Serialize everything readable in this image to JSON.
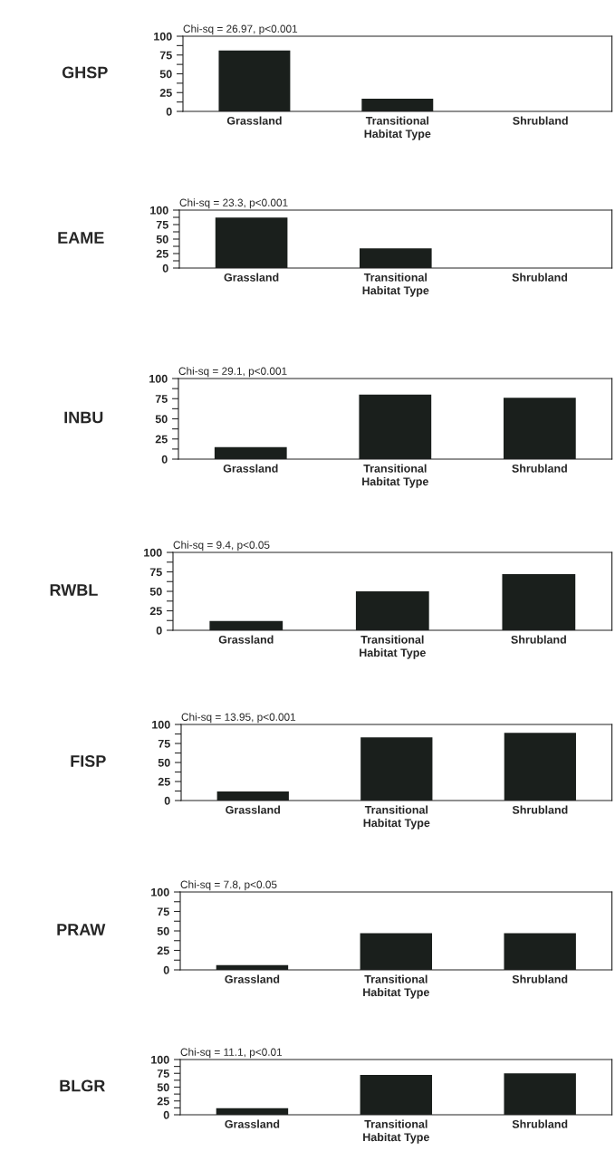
{
  "chart_data": [
    {
      "type": "bar",
      "title": "Chi-sq = 26.97, p<0.001",
      "ylabel": "GHSP",
      "xlabel": "Habitat Type",
      "categories": [
        "Grassland",
        "Transitional",
        "Shrubland"
      ],
      "values": [
        81,
        17,
        0
      ],
      "color": "#1a1f1c",
      "ylim": [
        0,
        100
      ],
      "yticks": [
        0,
        {
          "value": 12.5,
          "label": null
        },
        25,
        {
          "value": 37.5,
          "label": null
        },
        50,
        {
          "value": 62.5,
          "label": null
        },
        75,
        {
          "value": 87.5,
          "label": null
        },
        100
      ],
      "grid": false
    },
    {
      "type": "bar",
      "title": "Chi-sq = 23.3, p<0.001",
      "ylabel": "EAME",
      "xlabel": "Habitat Type",
      "categories": [
        "Grassland",
        "Transitional",
        "Shrubland"
      ],
      "values": [
        87,
        34,
        0
      ],
      "color": "#1a1f1c",
      "ylim": [
        0,
        100
      ],
      "yticks": [
        0,
        {
          "value": 12.5,
          "label": null
        },
        25,
        {
          "value": 37.5,
          "label": null
        },
        50,
        {
          "value": 62.5,
          "label": null
        },
        75,
        {
          "value": 87.5,
          "label": null
        },
        100
      ],
      "grid": false
    },
    {
      "type": "bar",
      "title": "Chi-sq = 29.1, p<0.001",
      "ylabel": "INBU",
      "xlabel": "Habitat Type",
      "categories": [
        "Grassland",
        "Transitional",
        "Shrubland"
      ],
      "values": [
        15,
        80,
        76
      ],
      "color": "#1a1f1c",
      "ylim": [
        0,
        100
      ],
      "yticks": [
        0,
        {
          "value": 12.5,
          "label": null
        },
        25,
        {
          "value": 37.5,
          "label": null
        },
        50,
        {
          "value": 62.5,
          "label": null
        },
        75,
        {
          "value": 87.5,
          "label": null
        },
        100
      ],
      "grid": false
    },
    {
      "type": "bar",
      "title": "Chi-sq = 9.4, p<0.05",
      "ylabel": "RWBL",
      "xlabel": "Habitat Type",
      "categories": [
        "Grassland",
        "Transitional",
        "Shrubland"
      ],
      "values": [
        12,
        50,
        72
      ],
      "color": "#1a1f1c",
      "ylim": [
        0,
        100
      ],
      "yticks": [
        0,
        {
          "value": 12.5,
          "label": null
        },
        25,
        {
          "value": 37.5,
          "label": null
        },
        50,
        {
          "value": 62.5,
          "label": null
        },
        75,
        {
          "value": 87.5,
          "label": null
        },
        100
      ],
      "grid": false
    },
    {
      "type": "bar",
      "title": "Chi-sq = 13.95, p<0.001",
      "ylabel": "FISP",
      "xlabel": "Habitat Type",
      "categories": [
        "Grassland",
        "Transitional",
        "Shrubland"
      ],
      "values": [
        12,
        83,
        89
      ],
      "color": "#1a1f1c",
      "ylim": [
        0,
        100
      ],
      "yticks": [
        0,
        {
          "value": 12.5,
          "label": null
        },
        25,
        {
          "value": 37.5,
          "label": null
        },
        50,
        {
          "value": 62.5,
          "label": null
        },
        75,
        {
          "value": 87.5,
          "label": null
        },
        100
      ],
      "grid": false
    },
    {
      "type": "bar",
      "title": "Chi-sq = 7.8, p<0.05",
      "ylabel": "PRAW",
      "xlabel": "Habitat Type",
      "categories": [
        "Grassland",
        "Transitional",
        "Shrubland"
      ],
      "values": [
        6,
        47,
        47
      ],
      "color": "#1a1f1c",
      "ylim": [
        0,
        100
      ],
      "yticks": [
        0,
        {
          "value": 12.5,
          "label": null
        },
        25,
        {
          "value": 37.5,
          "label": null
        },
        50,
        {
          "value": 62.5,
          "label": null
        },
        75,
        {
          "value": 87.5,
          "label": null
        },
        100
      ],
      "grid": false
    },
    {
      "type": "bar",
      "title": "Chi-sq = 11.1, p<0.01",
      "ylabel": "BLGR",
      "xlabel": "Habitat Type",
      "categories": [
        "Grassland",
        "Transitional",
        "Shrubland"
      ],
      "values": [
        12,
        72,
        75
      ],
      "color": "#1a1f1c",
      "ylim": [
        0,
        100
      ],
      "yticks": [
        0,
        {
          "value": 12.5,
          "label": null
        },
        25,
        {
          "value": 37.5,
          "label": null
        },
        50,
        {
          "value": 62.5,
          "label": null
        },
        75,
        {
          "value": 87.5,
          "label": null
        },
        100
      ],
      "grid": false
    }
  ]
}
